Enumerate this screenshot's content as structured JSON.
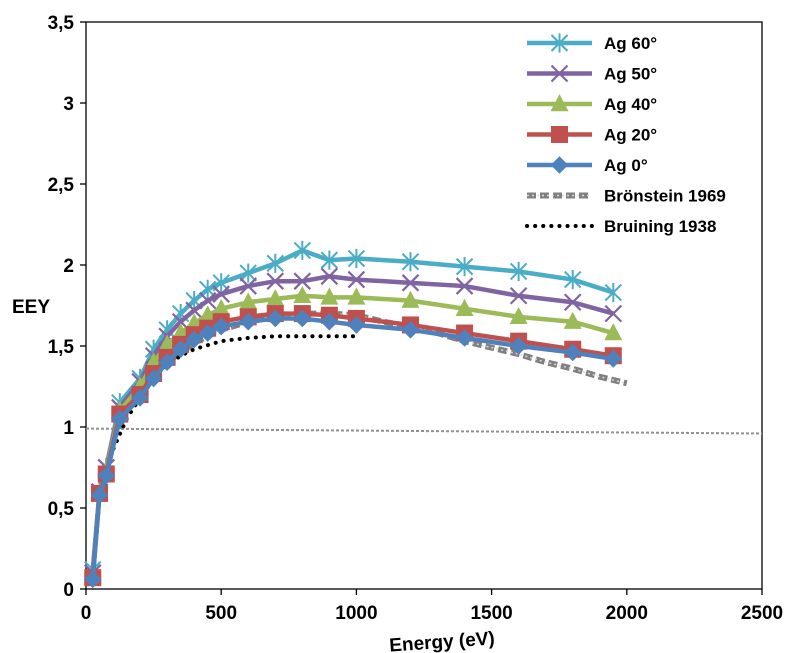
{
  "chart_data": {
    "type": "line",
    "xlabel": "Energy (eV)",
    "ylabel": "EEY",
    "xlim": [
      0,
      2500
    ],
    "ylim": [
      0,
      3.5
    ],
    "x_ticks": [
      0,
      500,
      1000,
      1500,
      2000,
      2500
    ],
    "x_tick_labels": [
      "0",
      "500",
      "1000",
      "1500",
      "2000",
      "2500"
    ],
    "y_ticks": [
      0,
      0.5,
      1,
      1.5,
      2,
      2.5,
      3,
      3.5
    ],
    "y_tick_labels": [
      "0",
      "0,5",
      "1",
      "1,5",
      "2",
      "2,5",
      "3",
      "3,5"
    ],
    "grid": false,
    "legend_position": "top-right",
    "x": [
      25,
      50,
      75,
      125,
      200,
      250,
      300,
      350,
      400,
      450,
      500,
      600,
      700,
      800,
      900,
      1000,
      1200,
      1400,
      1600,
      1800,
      1950
    ],
    "series": [
      {
        "name": "Ag 60°",
        "color": "#4BACC6",
        "marker": "star",
        "line": "solid",
        "values": [
          0.12,
          0.6,
          0.75,
          1.15,
          1.3,
          1.48,
          1.6,
          1.7,
          1.78,
          1.85,
          1.89,
          1.95,
          2.01,
          2.09,
          2.03,
          2.04,
          2.02,
          1.99,
          1.96,
          1.91,
          1.83
        ]
      },
      {
        "name": "Ag 50°",
        "color": "#8064A2",
        "marker": "x",
        "line": "solid",
        "values": [
          0.1,
          0.6,
          0.75,
          1.12,
          1.28,
          1.44,
          1.56,
          1.65,
          1.72,
          1.78,
          1.82,
          1.87,
          1.9,
          1.9,
          1.93,
          1.91,
          1.89,
          1.87,
          1.81,
          1.77,
          1.7
        ]
      },
      {
        "name": "Ag 40°",
        "color": "#9BBB59",
        "marker": "triangle",
        "line": "solid",
        "values": [
          0.08,
          0.59,
          0.73,
          1.1,
          1.25,
          1.4,
          1.51,
          1.58,
          1.64,
          1.69,
          1.73,
          1.77,
          1.79,
          1.81,
          1.8,
          1.8,
          1.78,
          1.73,
          1.68,
          1.65,
          1.58
        ]
      },
      {
        "name": "Ag 20°",
        "color": "#C0504D",
        "marker": "square",
        "line": "solid",
        "values": [
          0.07,
          0.59,
          0.71,
          1.08,
          1.2,
          1.33,
          1.43,
          1.51,
          1.57,
          1.61,
          1.65,
          1.68,
          1.7,
          1.7,
          1.69,
          1.67,
          1.63,
          1.58,
          1.53,
          1.48,
          1.44
        ]
      },
      {
        "name": "Ag 0°",
        "color": "#4F81BD",
        "marker": "diamond",
        "line": "solid",
        "values": [
          0.06,
          0.58,
          0.7,
          1.05,
          1.18,
          1.3,
          1.4,
          1.48,
          1.54,
          1.58,
          1.62,
          1.65,
          1.67,
          1.67,
          1.65,
          1.63,
          1.6,
          1.55,
          1.5,
          1.46,
          1.42
        ]
      },
      {
        "name": "Brönstein 1969",
        "color": "#808080",
        "marker": "none",
        "line": "dashed-thick",
        "x": [
          100,
          150,
          200,
          300,
          400,
          500,
          600,
          700,
          800,
          900,
          1000,
          1100,
          1200,
          1300,
          1400,
          1500,
          1600,
          1700,
          1800,
          1900,
          2000
        ],
        "values": [
          0.92,
          1.1,
          1.23,
          1.4,
          1.52,
          1.6,
          1.65,
          1.68,
          1.7,
          1.7,
          1.69,
          1.65,
          1.62,
          1.58,
          1.53,
          1.49,
          1.45,
          1.4,
          1.36,
          1.31,
          1.27
        ]
      },
      {
        "name": "Bruining 1938",
        "color": "#000000",
        "marker": "none",
        "line": "dotted",
        "x": [
          50,
          100,
          150,
          200,
          250,
          300,
          350,
          400,
          500,
          600,
          700,
          800,
          900,
          1000
        ],
        "values": [
          0.58,
          0.86,
          1.05,
          1.18,
          1.3,
          1.38,
          1.44,
          1.48,
          1.53,
          1.55,
          1.56,
          1.56,
          1.56,
          1.56
        ]
      }
    ],
    "reference_line": {
      "color": "#909090",
      "x": [
        0,
        2500
      ],
      "values": [
        0.99,
        0.96
      ]
    }
  }
}
